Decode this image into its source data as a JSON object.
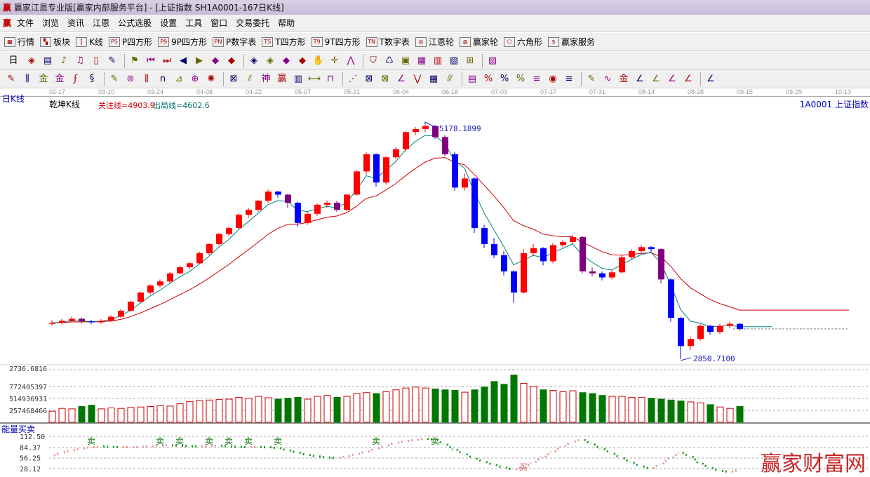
{
  "window": {
    "logo": "赢",
    "title": "赢家江恩专业版[赢家内部服务平台] - [上证指数  SH1A0001-167日K线]"
  },
  "menu": {
    "logo": "赢",
    "items": [
      "文件",
      "浏览",
      "资讯",
      "江恩",
      "公式选股",
      "设置",
      "工具",
      "窗口",
      "交易委托",
      "帮助"
    ]
  },
  "toolbar1": [
    {
      "icon": "grid-icon",
      "g": "▦",
      "label": "行情"
    },
    {
      "icon": "blocks-icon",
      "g": "▚",
      "label": "板块"
    },
    {
      "icon": "candles-icon",
      "g": "┇",
      "label": "K线"
    },
    {
      "icon": "ps-icon",
      "g": "PS",
      "label": "P四方形"
    },
    {
      "icon": "p9-icon",
      "g": "P9",
      "label": "9P四方形"
    },
    {
      "icon": "pn-icon",
      "g": "PN",
      "label": "P数字表"
    },
    {
      "icon": "ts-icon",
      "g": "TS",
      "label": "T四方形"
    },
    {
      "icon": "t9-icon",
      "g": "T9",
      "label": "9T四方形"
    },
    {
      "icon": "tn-icon",
      "g": "TN",
      "label": "T数字表"
    },
    {
      "icon": "gann-wheel-icon",
      "g": "◎",
      "label": "江恩轮"
    },
    {
      "icon": "winner-wheel-icon",
      "g": "◍",
      "label": "赢家轮"
    },
    {
      "icon": "hexagon-icon",
      "g": "⬡",
      "label": "六角形"
    },
    {
      "icon": "dollar-icon",
      "g": "$",
      "label": "赢家服务"
    }
  ],
  "toolbar2": {
    "period": "日",
    "icons": [
      "zoom-icon",
      "list-icon",
      "chart3-icon",
      "chart9-icon",
      "candle-type-icon",
      "draw-icon",
      "flag-icon",
      "first-icon",
      "last-icon",
      "prev-icon",
      "next-icon",
      "left-diamond-icon",
      "right-diamond-icon",
      "expand-icon",
      "shrink-icon",
      "fit-icon",
      "full-icon",
      "hand-icon",
      "crosshair-icon",
      "line-icon",
      "node-icon",
      "wire-icon",
      "calendar-icon",
      "calculator-icon",
      "notes-icon",
      "save-icon",
      "network-icon",
      "print-icon"
    ]
  },
  "toolbar3": {
    "icons": [
      "pen-icon",
      "lines-icon",
      "gold1-icon",
      "gold2-icon",
      "fib-icon",
      "spiral-icon",
      "pen2-icon",
      "circle-icon",
      "comb-icon",
      "n2-icon",
      "triangle-icon",
      "target-icon",
      "star-icon",
      "box-icon",
      "parallel-icon",
      "god-icon",
      "win-icon",
      "ruler-icon",
      "width-icon",
      "square-icon",
      "fan-icon",
      "box-fan-icon",
      "grid-fan-icon",
      "angle-icon",
      "v-icon",
      "cells-icon",
      "hatch-icon",
      "table-icon",
      "pct-line-icon",
      "percent-icon",
      "pct-eq-icon",
      "gold-circle-icon",
      "gold-eq-icon",
      "pencil-icon",
      "wave-icon",
      "gold-line-icon",
      "j-angle-icon",
      "f-angle-icon",
      "g-angle-icon",
      "shen-angle-icon",
      "ying-angle-icon",
      "four-angle-icon"
    ]
  },
  "dates": [
    "02-17",
    "03-10",
    "03-24",
    "04-08",
    "04-22",
    "05-07",
    "05-21",
    "06-04",
    "06-18",
    "07-03",
    "07-17",
    "07-31",
    "08-14",
    "08-28",
    "09-15",
    "09-29",
    "10-13"
  ],
  "chart_labels": {
    "period": "日K线",
    "indicator": "乾坤K线",
    "focus_line": "关注线=4903.9",
    "exit_line": "出局线=4602.6",
    "code": "1A0001  上证指数",
    "high_label": "5178.1899",
    "low_label": "2850.7100",
    "axis_bottom": "2736.6816",
    "energy_title": "能量买卖",
    "sell": "卖",
    "buy": "买",
    "watermark": "赢家财富网"
  },
  "colors": {
    "up": "#ff0000",
    "down": "#0000ff",
    "neutral": "#800080",
    "ma_short": "#008080",
    "ma_long": "#cc0000",
    "vol_up": "#cc0000",
    "vol_down": "#007700"
  },
  "chart_data": {
    "type": "candlestick",
    "xlabels": [
      "02-17",
      "03-10",
      "03-24",
      "04-08",
      "04-22",
      "05-07",
      "05-21",
      "06-04",
      "06-18",
      "07-03",
      "07-17",
      "07-31",
      "08-14",
      "08-28",
      "09-15",
      "09-29",
      "10-13"
    ],
    "ohlc": [
      [
        3200,
        3235,
        3180,
        3210
      ],
      [
        3210,
        3250,
        3195,
        3230
      ],
      [
        3230,
        3270,
        3215,
        3250
      ],
      [
        3250,
        3262,
        3205,
        3225
      ],
      [
        3225,
        3240,
        3195,
        3215
      ],
      [
        3215,
        3245,
        3200,
        3230
      ],
      [
        3230,
        3285,
        3220,
        3270
      ],
      [
        3270,
        3345,
        3260,
        3330
      ],
      [
        3330,
        3430,
        3320,
        3420
      ],
      [
        3420,
        3520,
        3410,
        3510
      ],
      [
        3510,
        3590,
        3490,
        3580
      ],
      [
        3580,
        3640,
        3560,
        3620
      ],
      [
        3620,
        3715,
        3600,
        3700
      ],
      [
        3700,
        3775,
        3690,
        3760
      ],
      [
        3760,
        3815,
        3740,
        3800
      ],
      [
        3800,
        3915,
        3790,
        3900
      ],
      [
        3900,
        4000,
        3880,
        3990
      ],
      [
        3990,
        4100,
        3975,
        4090
      ],
      [
        4090,
        4165,
        4070,
        4150
      ],
      [
        4150,
        4295,
        4140,
        4280
      ],
      [
        4280,
        4345,
        4250,
        4330
      ],
      [
        4330,
        4430,
        4310,
        4420
      ],
      [
        4420,
        4530,
        4400,
        4510
      ],
      [
        4510,
        4520,
        4450,
        4480
      ],
      [
        4480,
        4490,
        4350,
        4400
      ],
      [
        4400,
        4410,
        4160,
        4200
      ],
      [
        4200,
        4310,
        4180,
        4290
      ],
      [
        4290,
        4390,
        4270,
        4380
      ],
      [
        4380,
        4420,
        4350,
        4400
      ],
      [
        4400,
        4420,
        4310,
        4330
      ],
      [
        4330,
        4490,
        4320,
        4480
      ],
      [
        4480,
        4720,
        4470,
        4710
      ],
      [
        4710,
        4900,
        4680,
        4880
      ],
      [
        4880,
        4890,
        4560,
        4600
      ],
      [
        4600,
        4860,
        4580,
        4850
      ],
      [
        4850,
        4950,
        4830,
        4930
      ],
      [
        4930,
        5110,
        4910,
        5100
      ],
      [
        5100,
        5150,
        5070,
        5130
      ],
      [
        5130,
        5178,
        5100,
        5160
      ],
      [
        5160,
        5170,
        5030,
        5050
      ],
      [
        5050,
        5070,
        4860,
        4880
      ],
      [
        4880,
        4900,
        4520,
        4550
      ],
      [
        4550,
        4690,
        4520,
        4640
      ],
      [
        4640,
        4650,
        4100,
        4150
      ],
      [
        4150,
        4180,
        3950,
        3990
      ],
      [
        3990,
        4050,
        3850,
        3880
      ],
      [
        3880,
        3920,
        3680,
        3720
      ],
      [
        3720,
        3730,
        3410,
        3510
      ],
      [
        3510,
        3940,
        3500,
        3900
      ],
      [
        3900,
        3990,
        3870,
        3950
      ],
      [
        3950,
        3960,
        3780,
        3820
      ],
      [
        3820,
        4000,
        3800,
        3980
      ],
      [
        3980,
        4030,
        3960,
        4010
      ],
      [
        4010,
        4080,
        3990,
        4060
      ],
      [
        4060,
        4070,
        3700,
        3720
      ],
      [
        3720,
        3760,
        3670,
        3700
      ],
      [
        3700,
        3720,
        3630,
        3660
      ],
      [
        3660,
        3730,
        3640,
        3710
      ],
      [
        3710,
        3880,
        3700,
        3860
      ],
      [
        3860,
        3940,
        3840,
        3920
      ],
      [
        3920,
        3980,
        3900,
        3960
      ],
      [
        3960,
        3970,
        3900,
        3940
      ],
      [
        3940,
        3950,
        3600,
        3640
      ],
      [
        3640,
        3650,
        3220,
        3260
      ],
      [
        3260,
        3270,
        2850.71,
        2980
      ],
      [
        2980,
        3070,
        2940,
        3050
      ],
      [
        3050,
        3200,
        3030,
        3180
      ],
      [
        3180,
        3190,
        3090,
        3120
      ],
      [
        3120,
        3200,
        3100,
        3180
      ],
      [
        3180,
        3220,
        3160,
        3200
      ],
      [
        3200,
        3210,
        3130,
        3150
      ]
    ],
    "neutral_idx": [
      3,
      24,
      29,
      39,
      40,
      54,
      55,
      62
    ],
    "volume": [
      240000000,
      300000000,
      290000000,
      340000000,
      370000000,
      290000000,
      310000000,
      300000000,
      320000000,
      330000000,
      340000000,
      360000000,
      350000000,
      400000000,
      450000000,
      470000000,
      480000000,
      490000000,
      500000000,
      540000000,
      520000000,
      560000000,
      530000000,
      500000000,
      520000000,
      540000000,
      500000000,
      560000000,
      580000000,
      540000000,
      560000000,
      620000000,
      640000000,
      620000000,
      660000000,
      700000000,
      740000000,
      760000000,
      740000000,
      720000000,
      700000000,
      690000000,
      650000000,
      700000000,
      760000000,
      880000000,
      820000000,
      1020000000,
      840000000,
      780000000,
      700000000,
      690000000,
      660000000,
      680000000,
      640000000,
      620000000,
      580000000,
      560000000,
      560000000,
      540000000,
      540000000,
      520000000,
      500000000,
      480000000,
      460000000,
      440000000,
      420000000,
      380000000,
      330000000,
      300000000,
      340000000
    ],
    "volume_ticks": [
      257468466,
      514936931,
      772405397
    ],
    "price_extremes": {
      "high": 5178.1899,
      "low": 2850.71
    },
    "energy": [
      62,
      70,
      76,
      80,
      84,
      86,
      85,
      84,
      84,
      85,
      86,
      88,
      89,
      88,
      87,
      86,
      87,
      88,
      86,
      85,
      84,
      85,
      84,
      82,
      76,
      70,
      64,
      60,
      57,
      56,
      60,
      66,
      72,
      80,
      88,
      95,
      100,
      103,
      106,
      104,
      92,
      78,
      66,
      55,
      46,
      38,
      31,
      26,
      30,
      44,
      58,
      72,
      86,
      98,
      104,
      92,
      80,
      68,
      56,
      44,
      34,
      28,
      40,
      56,
      70,
      60,
      42,
      30,
      22,
      20,
      24
    ],
    "energy_ticks": [
      112.5,
      84.37,
      56.25,
      28.12
    ],
    "sell_idx": [
      4,
      11,
      13,
      16,
      18,
      20,
      23,
      33,
      39
    ],
    "buy_idx": [
      48
    ]
  }
}
